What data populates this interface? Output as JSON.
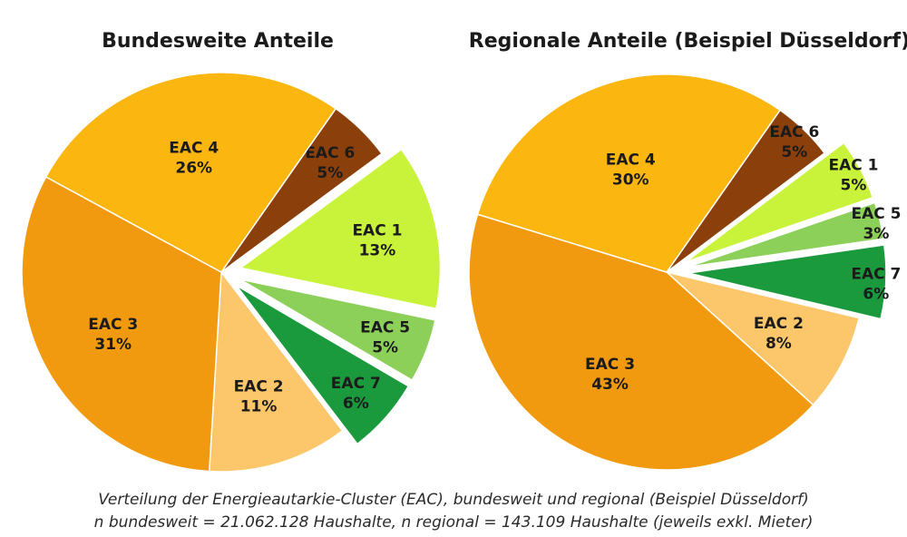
{
  "chart_data": [
    {
      "type": "pie",
      "title": "Bundesweite Anteile",
      "slices": [
        {
          "label": "EAC 6",
          "value": 5,
          "display": "5%",
          "color": "#8b3f0b",
          "exploded": false
        },
        {
          "label": "EAC 1",
          "value": 13,
          "display": "13%",
          "color": "#c9f23a",
          "exploded": true
        },
        {
          "label": "EAC 5",
          "value": 5,
          "display": "5%",
          "color": "#8cd05a",
          "exploded": true
        },
        {
          "label": "EAC 7",
          "value": 6,
          "display": "6%",
          "color": "#1a9a3c",
          "exploded": true
        },
        {
          "label": "EAC 2",
          "value": 11,
          "display": "11%",
          "color": "#fcc66a",
          "exploded": false
        },
        {
          "label": "EAC 3",
          "value": 31,
          "display": "31%",
          "color": "#f29a0f",
          "exploded": false
        },
        {
          "label": "EAC 4",
          "value": 26,
          "display": "26%",
          "color": "#fbb710",
          "exploded": false
        }
      ]
    },
    {
      "type": "pie",
      "title": "Regionale Anteile (Beispiel Düsseldorf)",
      "slices": [
        {
          "label": "EAC 6",
          "value": 5,
          "display": "5%",
          "color": "#8b3f0b",
          "exploded": false
        },
        {
          "label": "EAC 1",
          "value": 5,
          "display": "5%",
          "color": "#c9f23a",
          "exploded": true
        },
        {
          "label": "EAC 5",
          "value": 3,
          "display": "3%",
          "color": "#8cd05a",
          "exploded": true
        },
        {
          "label": "EAC 7",
          "value": 6,
          "display": "6%",
          "color": "#1a9a3c",
          "exploded": true
        },
        {
          "label": "EAC 2",
          "value": 8,
          "display": "8%",
          "color": "#fcc66a",
          "exploded": false
        },
        {
          "label": "EAC 3",
          "value": 43,
          "display": "43%",
          "color": "#f29a0f",
          "exploded": false
        },
        {
          "label": "EAC 4",
          "value": 30,
          "display": "30%",
          "color": "#fbb710",
          "exploded": false
        }
      ]
    }
  ],
  "caption": {
    "line1": "Verteilung der Energieautarkie-Cluster (EAC), bundesweit und regional (Beispiel Düsseldorf)",
    "line2": "n bundesweit = 21.062.128 Haushalte, n regional = 143.109 Haushalte (jeweils exkl. Mieter)"
  }
}
